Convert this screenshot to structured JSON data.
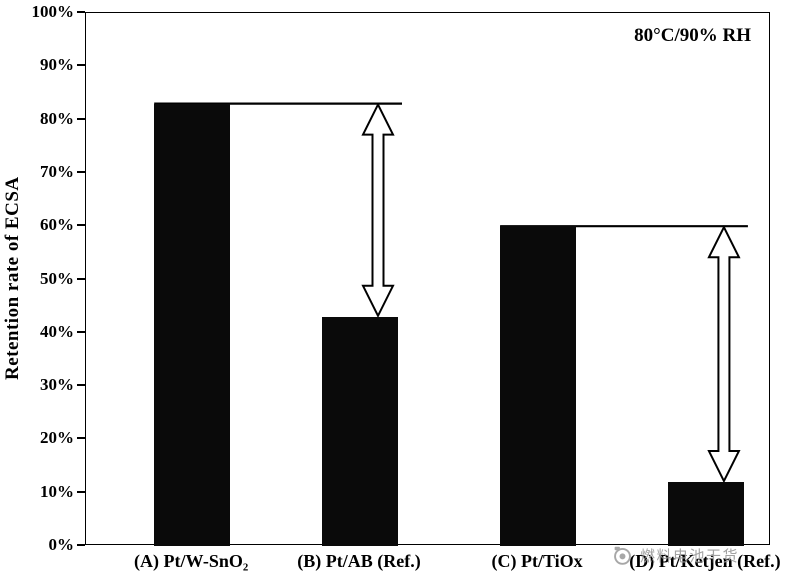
{
  "chart_data": {
    "type": "bar",
    "title": "",
    "ylabel": "Retention rate of ECSA",
    "xlabel": "",
    "ylim": [
      0,
      100
    ],
    "yticks": [
      0,
      10,
      20,
      30,
      40,
      50,
      60,
      70,
      80,
      90,
      100
    ],
    "ytick_labels": [
      "0%",
      "10%",
      "20%",
      "30%",
      "40%",
      "50%",
      "60%",
      "70%",
      "80%",
      "90%",
      "100%"
    ],
    "categories": [
      "(A) Pt/W-SnO₂",
      "(B) Pt/AB (Ref.)",
      "(C) Pt/TiOx",
      "(D) Pt/Ketjen (Ref.)"
    ],
    "values": [
      83,
      43,
      60,
      12
    ],
    "bar_color": "#0a0a0a",
    "grid": false,
    "annotation": "80°C/90% RH",
    "drop_arrows": [
      {
        "from_index": 0,
        "to_index": 1,
        "from_value": 83,
        "to_value": 43
      },
      {
        "from_index": 2,
        "to_index": 3,
        "from_value": 60,
        "to_value": 12
      }
    ]
  },
  "watermark": {
    "text": "燃料电池干货"
  }
}
